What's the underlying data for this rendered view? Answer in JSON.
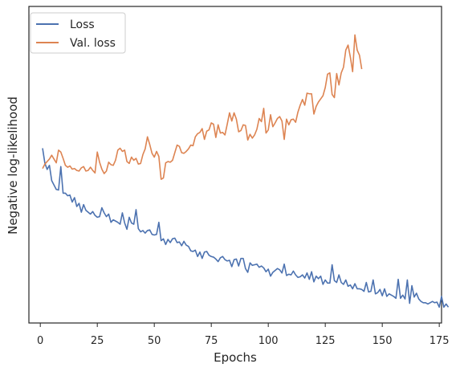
{
  "chart_data": {
    "type": "line",
    "title": "",
    "xlabel": "Epochs",
    "ylabel": "Negative log-likelihood",
    "xlim": [
      -5,
      176
    ],
    "ylim": [
      0,
      100
    ],
    "yticks_shown": false,
    "xticks": [
      0,
      25,
      50,
      75,
      100,
      125,
      150,
      175
    ],
    "grid": false,
    "legend_position": "top-left",
    "series": [
      {
        "name": "Loss",
        "color": "#4c72b0",
        "x_start": 1,
        "values": [
          55.2,
          50.5,
          48.5,
          49.8,
          45.0,
          43.6,
          42.2,
          42.0,
          49.4,
          41.0,
          41.0,
          40.2,
          40.4,
          38.2,
          39.6,
          36.8,
          37.8,
          35.0,
          37.4,
          35.6,
          35.0,
          34.4,
          35.2,
          34.0,
          33.4,
          33.6,
          36.4,
          34.8,
          33.6,
          34.4,
          31.8,
          32.6,
          32.2,
          31.8,
          31.2,
          34.8,
          31.6,
          29.6,
          33.4,
          31.6,
          31.2,
          35.8,
          29.8,
          28.8,
          29.2,
          28.4,
          29.2,
          29.4,
          28.0,
          27.8,
          28.0,
          31.8,
          26.0,
          26.6,
          24.8,
          26.4,
          25.4,
          26.6,
          26.8,
          25.4,
          25.6,
          24.4,
          25.8,
          24.6,
          24.2,
          22.8,
          22.6,
          23.0,
          21.0,
          22.4,
          20.4,
          22.4,
          22.6,
          21.4,
          21.0,
          20.8,
          20.2,
          19.4,
          20.6,
          21.0,
          20.0,
          19.6,
          19.8,
          17.8,
          20.0,
          20.2,
          18.0,
          20.4,
          20.4,
          17.2,
          16.0,
          19.0,
          18.2,
          18.4,
          18.6,
          17.6,
          18.0,
          17.4,
          16.2,
          17.0,
          14.8,
          16.0,
          16.6,
          17.2,
          16.8,
          15.8,
          18.6,
          15.0,
          15.4,
          15.2,
          16.4,
          15.2,
          14.4,
          14.6,
          15.2,
          14.2,
          15.8,
          13.8,
          16.2,
          13.0,
          14.8,
          14.0,
          14.8,
          12.2,
          13.6,
          12.6,
          12.6,
          18.4,
          13.4,
          12.8,
          15.2,
          12.8,
          12.2,
          13.6,
          11.6,
          12.0,
          10.8,
          12.4,
          10.8,
          10.8,
          10.6,
          10.0,
          12.8,
          9.8,
          10.0,
          13.6,
          9.2,
          9.6,
          10.6,
          8.6,
          10.8,
          8.4,
          9.2,
          8.8,
          8.4,
          7.8,
          13.8,
          7.8,
          8.8,
          7.6,
          13.6,
          6.2,
          11.8,
          8.2,
          9.4,
          7.6,
          6.8,
          6.4,
          6.4,
          6.0,
          6.4,
          6.8,
          6.4,
          6.6,
          5.0,
          8.4,
          5.0,
          6.0,
          5.0
        ]
      },
      {
        "name": "Val. loss",
        "color": "#dd8452",
        "x_start": 1,
        "values": [
          48.8,
          50.2,
          51.0,
          51.8,
          53.0,
          51.8,
          50.6,
          54.6,
          54.0,
          52.0,
          49.8,
          49.2,
          49.6,
          48.6,
          48.8,
          48.2,
          48.0,
          49.0,
          49.4,
          48.0,
          48.2,
          49.2,
          48.2,
          47.4,
          54.0,
          50.8,
          48.6,
          47.2,
          48.0,
          50.8,
          50.0,
          49.8,
          51.4,
          54.6,
          55.2,
          54.2,
          54.6,
          51.0,
          50.4,
          52.4,
          51.4,
          52.0,
          50.2,
          50.4,
          53.2,
          55.0,
          58.8,
          56.4,
          53.6,
          52.4,
          54.2,
          52.6,
          45.4,
          45.8,
          50.6,
          51.0,
          50.8,
          51.4,
          53.8,
          56.2,
          55.8,
          53.8,
          53.6,
          54.2,
          55.0,
          56.2,
          56.0,
          58.8,
          59.8,
          60.2,
          61.4,
          58.0,
          60.6,
          61.0,
          63.2,
          62.8,
          58.6,
          62.6,
          60.0,
          60.2,
          59.4,
          62.8,
          66.4,
          63.8,
          66.4,
          64.4,
          60.4,
          60.8,
          62.6,
          62.4,
          57.8,
          59.6,
          58.4,
          59.4,
          61.2,
          64.6,
          63.6,
          67.8,
          60.0,
          61.0,
          65.8,
          62.0,
          63.2,
          64.6,
          65.2,
          63.8,
          58.0,
          64.4,
          62.6,
          64.2,
          64.4,
          63.4,
          66.6,
          68.8,
          70.6,
          68.8,
          72.6,
          72.4,
          72.4,
          66.0,
          68.4,
          69.8,
          70.8,
          71.8,
          74.4,
          78.6,
          79.0,
          72.2,
          71.2,
          78.8,
          75.2,
          79.0,
          80.8,
          86.2,
          87.8,
          84.0,
          79.4,
          91.0,
          86.2,
          84.6,
          80.2
        ]
      }
    ]
  }
}
